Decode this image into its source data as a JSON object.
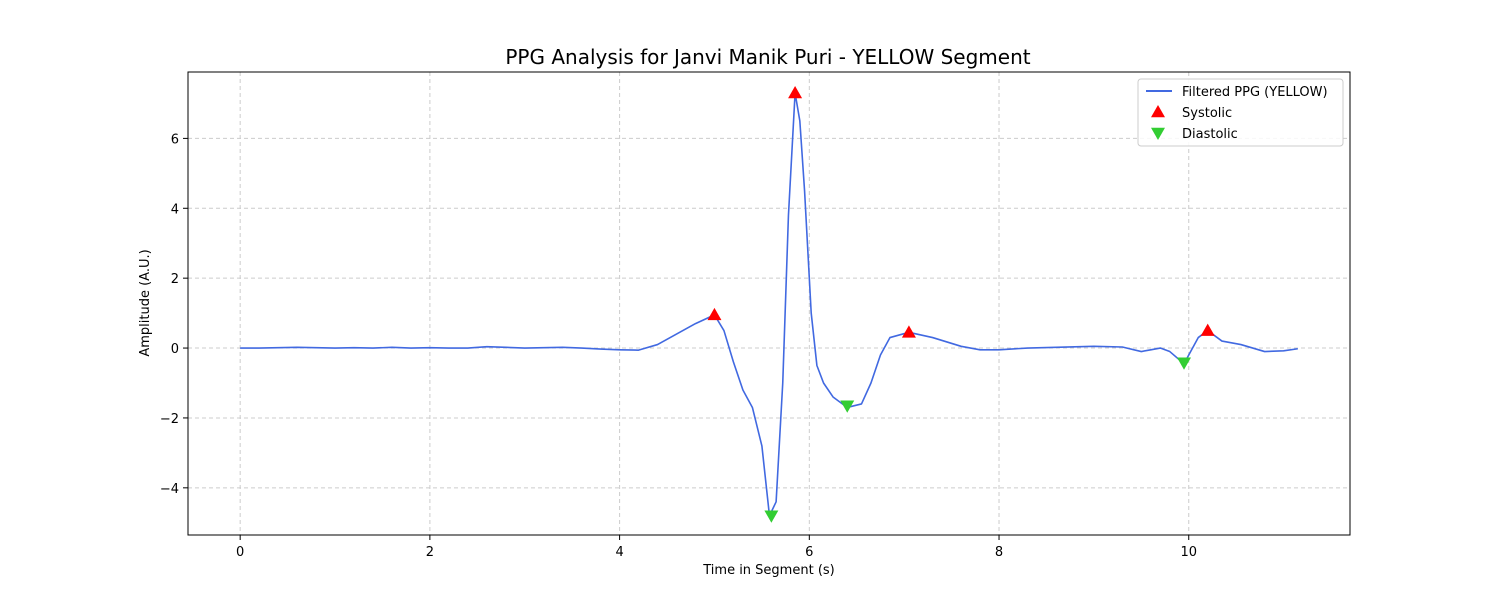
{
  "chart_data": {
    "type": "line",
    "title": "PPG Analysis for Janvi Manik Puri - YELLOW Segment",
    "xlabel": "Time in Segment (s)",
    "ylabel": "Amplitude (A.U.)",
    "xlim": [
      -0.55,
      11.7
    ],
    "ylim": [
      -5.35,
      7.9
    ],
    "xticks": [
      0,
      2,
      4,
      6,
      8,
      10
    ],
    "yticks": [
      -4,
      -2,
      0,
      2,
      4,
      6
    ],
    "grid": true,
    "legend_position": "top-right",
    "series": [
      {
        "name": "Filtered PPG (YELLOW)",
        "color": "#4169e1",
        "kind": "line",
        "x": [
          0,
          0.2,
          0.4,
          0.6,
          0.8,
          1.0,
          1.2,
          1.4,
          1.6,
          1.8,
          2.0,
          2.2,
          2.4,
          2.6,
          2.8,
          3.0,
          3.2,
          3.4,
          3.6,
          3.8,
          4.0,
          4.2,
          4.4,
          4.6,
          4.8,
          5.0,
          5.1,
          5.2,
          5.3,
          5.4,
          5.5,
          5.58,
          5.65,
          5.72,
          5.78,
          5.85,
          5.9,
          5.95,
          6.02,
          6.08,
          6.15,
          6.25,
          6.4,
          6.55,
          6.65,
          6.75,
          6.85,
          7.05,
          7.3,
          7.6,
          7.8,
          8.0,
          8.3,
          8.6,
          9.0,
          9.3,
          9.5,
          9.6,
          9.7,
          9.8,
          9.95,
          10.1,
          10.2,
          10.35,
          10.55,
          10.8,
          11.0,
          11.15
        ],
        "y": [
          0.0,
          0.0,
          0.01,
          0.02,
          0.01,
          0.0,
          0.01,
          0.0,
          0.02,
          0.0,
          0.01,
          0.0,
          0.0,
          0.04,
          0.02,
          0.0,
          0.01,
          0.02,
          0.0,
          -0.03,
          -0.05,
          -0.06,
          0.1,
          0.4,
          0.7,
          0.95,
          0.5,
          -0.4,
          -1.2,
          -1.7,
          -2.8,
          -4.8,
          -4.4,
          -1.0,
          3.8,
          7.3,
          6.5,
          4.5,
          1.0,
          -0.5,
          -1.0,
          -1.4,
          -1.7,
          -1.6,
          -1.0,
          -0.2,
          0.3,
          0.45,
          0.3,
          0.05,
          -0.05,
          -0.05,
          0.0,
          0.02,
          0.05,
          0.03,
          -0.1,
          -0.05,
          0.0,
          -0.1,
          -0.45,
          0.3,
          0.5,
          0.2,
          0.1,
          -0.1,
          -0.08,
          -0.02
        ]
      },
      {
        "name": "Systolic",
        "color": "#ff0000",
        "kind": "marker-up",
        "x": [
          5.0,
          5.85,
          7.05,
          10.2
        ],
        "y": [
          0.95,
          7.3,
          0.45,
          0.5
        ]
      },
      {
        "name": "Diastolic",
        "color": "#32cd32",
        "kind": "marker-down",
        "x": [
          5.6,
          6.4,
          9.95
        ],
        "y": [
          -4.8,
          -1.65,
          -0.42
        ]
      }
    ]
  }
}
